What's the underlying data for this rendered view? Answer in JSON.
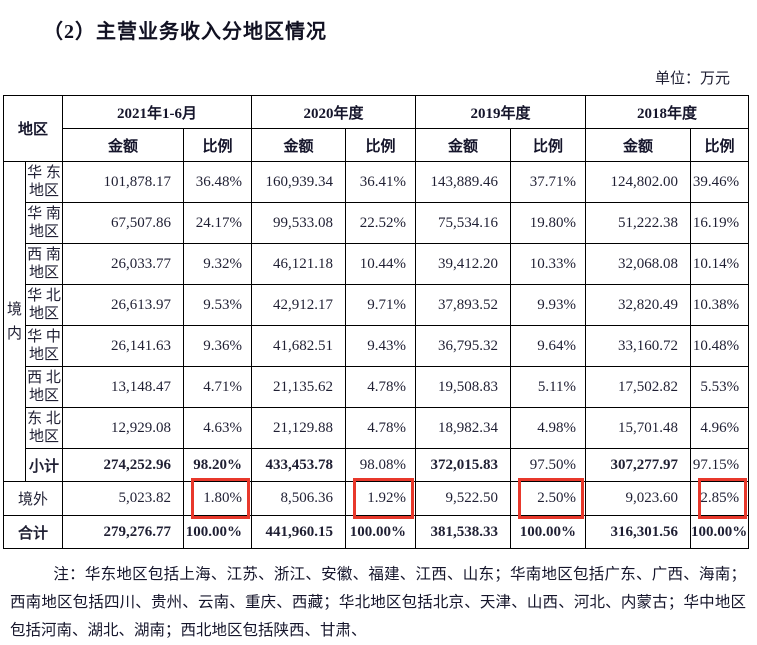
{
  "page": {
    "title": "（2）主营业务收入分地区情况",
    "unit_label": "单位：万元"
  },
  "table": {
    "corner_header": "地区",
    "amount_label": "金额",
    "ratio_label": "比例",
    "domestic_label": "境\n内",
    "periods": [
      {
        "label": "2021年1-6月"
      },
      {
        "label": "2020年度"
      },
      {
        "label": "2019年度"
      },
      {
        "label": "2018年度"
      }
    ],
    "rows": [
      {
        "key": "huadong",
        "type": "region",
        "label": "华 东\n地区",
        "values": [
          "101,878.17",
          "36.48%",
          "160,939.34",
          "36.41%",
          "143,889.46",
          "37.71%",
          "124,802.00",
          "39.46%"
        ]
      },
      {
        "key": "huanan",
        "type": "region",
        "label": "华 南\n地区",
        "values": [
          "67,507.86",
          "24.17%",
          "99,533.08",
          "22.52%",
          "75,534.16",
          "19.80%",
          "51,222.38",
          "16.19%"
        ]
      },
      {
        "key": "xinan",
        "type": "region",
        "label": "西 南\n地区",
        "values": [
          "26,033.77",
          "9.32%",
          "46,121.18",
          "10.44%",
          "39,412.20",
          "10.33%",
          "32,068.08",
          "10.14%"
        ]
      },
      {
        "key": "huabei",
        "type": "region",
        "label": "华 北\n地区",
        "values": [
          "26,613.97",
          "9.53%",
          "42,912.17",
          "9.71%",
          "37,893.52",
          "9.93%",
          "32,820.49",
          "10.38%"
        ]
      },
      {
        "key": "huazhong",
        "type": "region",
        "label": "华 中\n地区",
        "values": [
          "26,141.63",
          "9.36%",
          "41,682.51",
          "9.43%",
          "36,795.32",
          "9.64%",
          "33,160.72",
          "10.48%"
        ]
      },
      {
        "key": "xibei",
        "type": "region",
        "label": "西 北\n地区",
        "values": [
          "13,148.47",
          "4.71%",
          "21,135.62",
          "4.78%",
          "19,508.83",
          "5.11%",
          "17,502.82",
          "5.53%"
        ]
      },
      {
        "key": "dongbei",
        "type": "region",
        "label": "东 北\n地区",
        "values": [
          "12,929.08",
          "4.63%",
          "21,129.88",
          "4.78%",
          "18,982.34",
          "4.98%",
          "15,701.48",
          "4.96%"
        ]
      },
      {
        "key": "subtotal",
        "type": "subtotal",
        "label": "小计",
        "values": [
          "274,252.96",
          "98.20%",
          "433,453.78",
          "98.08%",
          "372,015.83",
          "97.50%",
          "307,277.97",
          "97.15%"
        ],
        "bold_cells": [
          true,
          true,
          true,
          false,
          true,
          false,
          true,
          false
        ],
        "label_bold": true
      },
      {
        "key": "overseas",
        "type": "overseas",
        "label": "境外",
        "values": [
          "5,023.82",
          "1.80%",
          "8,506.36",
          "1.92%",
          "9,522.50",
          "2.50%",
          "9,023.60",
          "2.85%"
        ],
        "highlight_cells": [
          false,
          true,
          false,
          true,
          false,
          true,
          false,
          true
        ],
        "label_bold": false
      },
      {
        "key": "total",
        "type": "total",
        "label": "合计",
        "values": [
          "279,276.77",
          "100.00%",
          "441,960.15",
          "100.00%",
          "381,538.33",
          "100.00%",
          "316,301.56",
          "100.00%"
        ],
        "bold_cells": [
          true,
          true,
          true,
          true,
          true,
          true,
          true,
          true
        ],
        "label_bold": true
      }
    ]
  },
  "note": "注：华东地区包括上海、江苏、浙江、安徽、福建、江西、山东；华南地区包括广东、广西、海南；西南地区包括四川、贵州、云南、重庆、西藏；华北地区包括北京、天津、山西、河北、内蒙古；华中地区包括河南、湖北、湖南；西北地区包括陕西、甘肃、",
  "colors": {
    "highlight_box": "#e8382b",
    "text": "#1f1f33",
    "border": "#000000"
  }
}
